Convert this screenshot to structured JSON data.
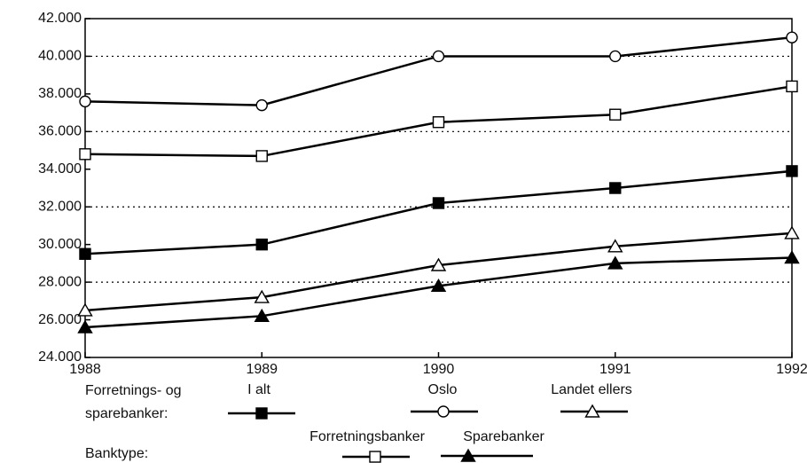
{
  "chart_data": {
    "type": "line",
    "x": [
      1988,
      1989,
      1990,
      1991,
      1992
    ],
    "xlim": [
      1988,
      1992
    ],
    "xticks": [
      1988,
      1989,
      1990,
      1991,
      1992
    ],
    "ylim": [
      24000,
      42000
    ],
    "yticks": [
      {
        "value": 24000,
        "label": "24.000"
      },
      {
        "value": 26000,
        "label": "26.000"
      },
      {
        "value": 28000,
        "label": "28.000"
      },
      {
        "value": 30000,
        "label": "30.000"
      },
      {
        "value": 32000,
        "label": "32.000"
      },
      {
        "value": 34000,
        "label": "34.000"
      },
      {
        "value": 36000,
        "label": "36.000"
      },
      {
        "value": 38000,
        "label": "38.000"
      },
      {
        "value": 40000,
        "label": "40.000"
      },
      {
        "value": 42000,
        "label": "42.000"
      }
    ],
    "ygrid": [
      28000,
      32000,
      36000,
      40000
    ],
    "legend_groups": [
      {
        "label": [
          "Forretnings- og",
          "sparebanker:"
        ]
      },
      {
        "label": [
          "Banktype:"
        ]
      }
    ],
    "series": [
      {
        "name": "I alt",
        "marker": "square-filled",
        "color": "#000000",
        "values": [
          29500,
          30000,
          32200,
          33000,
          33900
        ]
      },
      {
        "name": "Oslo",
        "marker": "circle-open",
        "color": "#000000",
        "values": [
          37600,
          37400,
          40000,
          40000,
          41000
        ]
      },
      {
        "name": "Landet ellers",
        "marker": "triangle-open",
        "color": "#000000",
        "values": [
          26500,
          27200,
          28900,
          29900,
          30600
        ]
      },
      {
        "name": "Forretningsbanker",
        "marker": "square-open",
        "color": "#000000",
        "values": [
          34800,
          34700,
          36500,
          36900,
          38400
        ]
      },
      {
        "name": "Sparebanker",
        "marker": "triangle-filled",
        "color": "#000000",
        "values": [
          25600,
          26200,
          27800,
          29000,
          29300
        ]
      }
    ]
  }
}
